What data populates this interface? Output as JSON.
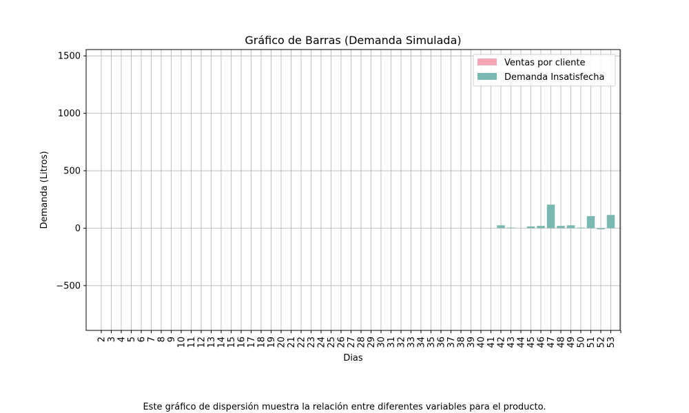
{
  "chart_data": {
    "type": "bar",
    "title": "Gráfico de Barras (Demanda Simulada)",
    "xlabel": "Dias",
    "ylabel": "Demanda (Litros)",
    "ylim": [
      -890,
      1555
    ],
    "yticks": [
      -500,
      0,
      500,
      1000,
      1500
    ],
    "ytick_labels": [
      "−500",
      "0",
      "500",
      "1000",
      "1500"
    ],
    "grid": true,
    "legend_position": "top-right",
    "categories": [
      "2",
      "3",
      "4",
      "5",
      "6",
      "7",
      "8",
      "9",
      "10",
      "11",
      "12",
      "13",
      "14",
      "15",
      "16",
      "17",
      "18",
      "19",
      "20",
      "21",
      "22",
      "23",
      "24",
      "25",
      "26",
      "27",
      "28",
      "29",
      "30",
      "31",
      "32",
      "33",
      "34",
      "35",
      "36",
      "37",
      "38",
      "39",
      "40",
      "41",
      "42",
      "43",
      "44",
      "45",
      "46",
      "47",
      "48",
      "49",
      "50",
      "51",
      "52",
      "53"
    ],
    "series": [
      {
        "name": "Ventas por cliente",
        "color": "#f4a6b4",
        "values": [
          0,
          0,
          0,
          0,
          0,
          0,
          0,
          0,
          0,
          0,
          0,
          0,
          0,
          0,
          0,
          0,
          0,
          0,
          0,
          0,
          0,
          0,
          0,
          0,
          0,
          0,
          0,
          0,
          0,
          0,
          0,
          0,
          0,
          0,
          0,
          0,
          0,
          0,
          0,
          0,
          0,
          0,
          0,
          0,
          0,
          0,
          0,
          0,
          0,
          0,
          0,
          0
        ]
      },
      {
        "name": "Demanda Insatisfecha",
        "color": "#7ab8b2",
        "values": [
          0,
          0,
          0,
          0,
          0,
          0,
          0,
          0,
          0,
          0,
          0,
          0,
          0,
          0,
          0,
          0,
          0,
          0,
          0,
          0,
          0,
          0,
          0,
          0,
          0,
          0,
          0,
          0,
          0,
          0,
          0,
          0,
          0,
          0,
          0,
          0,
          0,
          0,
          0,
          0,
          25,
          5,
          0,
          15,
          20,
          205,
          20,
          25,
          5,
          105,
          -10,
          115
        ]
      }
    ]
  },
  "caption": "Este gráfico de dispersión muestra la relación entre diferentes variables para el producto."
}
